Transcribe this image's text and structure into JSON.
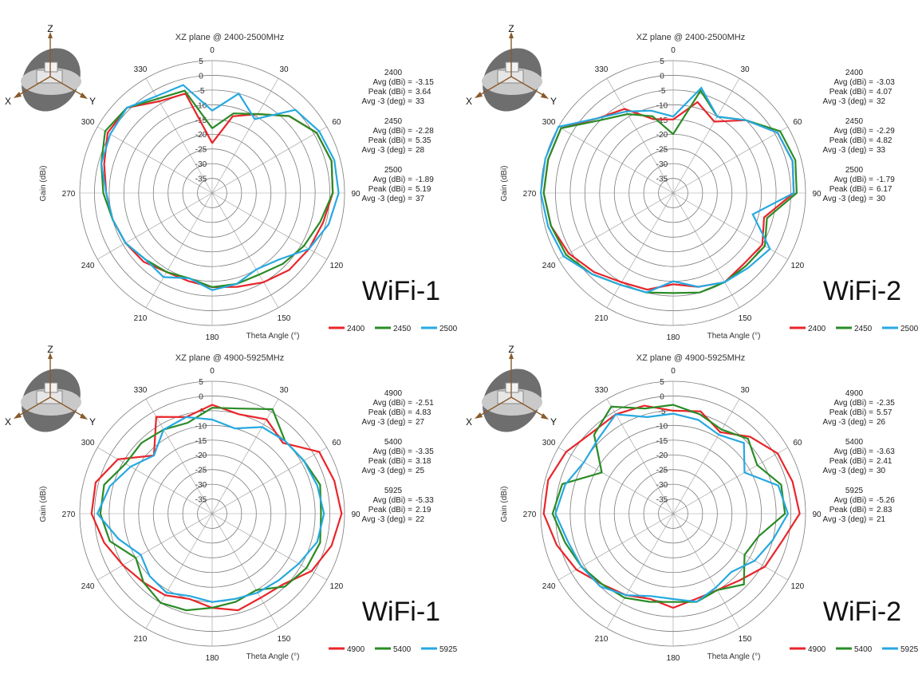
{
  "chart_data": [
    {
      "type": "polar-line",
      "title": "XZ plane @ 2400-2500MHz",
      "xlabel": "Theta Angle (°)",
      "ylabel": "Gain (dBi)",
      "rlim": [
        -40,
        5
      ],
      "r_ticks": [
        5,
        0,
        -5,
        -10,
        -15,
        -20,
        -25,
        -30,
        -35
      ],
      "angle_ticks": [
        0,
        30,
        60,
        90,
        120,
        150,
        180,
        210,
        240,
        270,
        300,
        330
      ],
      "grid": true,
      "legend": "bottom-right",
      "annotation": "WiFi-1",
      "stats": [
        {
          "label": "2400",
          "avg": "-3.15",
          "peak": "3.64",
          "avg3": "33"
        },
        {
          "label": "2450",
          "avg": "-2.28",
          "peak": "5.35",
          "avg3": "28"
        },
        {
          "label": "2500",
          "avg": "-1.89",
          "peak": "5.19",
          "avg3": "37"
        }
      ],
      "theta": [
        0,
        15,
        30,
        45,
        60,
        75,
        90,
        105,
        120,
        135,
        150,
        165,
        180,
        195,
        210,
        225,
        240,
        255,
        270,
        285,
        300,
        315,
        330,
        345
      ],
      "series": [
        {
          "name": "2400",
          "color": "#e8262b",
          "values": [
            -23,
            -13,
            -9,
            -3,
            1,
            2,
            1,
            -1,
            -2,
            -3,
            -5,
            -7,
            -8,
            -9,
            -9,
            -7,
            -6,
            -5,
            -4,
            -2,
            1,
            1,
            -4,
            -5
          ]
        },
        {
          "name": "2450",
          "color": "#2a8c26",
          "values": [
            -18,
            -12,
            -9,
            -3,
            1,
            2,
            1,
            -2,
            -4,
            -6,
            -8,
            -8,
            -8,
            -10,
            -9,
            -8,
            -6,
            -5,
            -3,
            -1,
            2,
            1,
            -3,
            -4
          ]
        },
        {
          "name": "2500",
          "color": "#26a9e0",
          "values": [
            -12,
            -5,
            -11,
            0,
            2,
            3,
            3,
            1,
            -2,
            -8,
            -10,
            -8,
            -7,
            -10,
            -7,
            -8,
            -6,
            -5,
            -4,
            -1,
            0,
            1,
            -2,
            -2
          ]
        }
      ]
    },
    {
      "type": "polar-line",
      "title": "XZ plane @ 2400-2500MHz",
      "xlabel": "Theta Angle (°)",
      "ylabel": "Gain (dBi)",
      "rlim": [
        -40,
        5
      ],
      "r_ticks": [
        5,
        0,
        -5,
        -10,
        -15,
        -20,
        -25,
        -30,
        -35
      ],
      "angle_ticks": [
        0,
        30,
        60,
        90,
        120,
        150,
        180,
        210,
        240,
        270,
        300,
        330
      ],
      "grid": true,
      "legend": "bottom-right",
      "annotation": "WiFi-2",
      "stats": [
        {
          "label": "2400",
          "avg": "-3.03",
          "peak": "4.07",
          "avg3": "32"
        },
        {
          "label": "2450",
          "avg": "-2.29",
          "peak": "4.82",
          "avg3": "33"
        },
        {
          "label": "2500",
          "avg": "-1.79",
          "peak": "6.17",
          "avg3": "30"
        }
      ],
      "theta": [
        0,
        15,
        30,
        45,
        60,
        75,
        90,
        105,
        120,
        135,
        150,
        165,
        180,
        195,
        210,
        225,
        240,
        255,
        270,
        285,
        300,
        315,
        330,
        345
      ],
      "series": [
        {
          "name": "2400",
          "color": "#e8262b",
          "values": [
            -15,
            -8,
            -12,
            -5,
            1,
            2,
            1,
            -8,
            -5,
            -6,
            -5,
            -7,
            -9,
            -6,
            -5,
            -2,
            1,
            3,
            4,
            4,
            4,
            -4,
            -7,
            -14
          ]
        },
        {
          "name": "2450",
          "color": "#2a8c26",
          "values": [
            -20,
            -4,
            -10,
            -5,
            2,
            3,
            2,
            -7,
            -4,
            -5,
            -5,
            -5,
            -6,
            -5,
            -4,
            -1,
            2,
            3,
            4,
            4,
            4,
            -5,
            -9,
            -13
          ]
        },
        {
          "name": "2500",
          "color": "#26a9e0",
          "values": [
            -14,
            -3,
            -10,
            -5,
            1,
            2,
            1,
            -12,
            -2,
            -4,
            -5,
            -7,
            -10,
            -5,
            -4,
            -1,
            3,
            4,
            5,
            5,
            5,
            -4,
            -8,
            -11
          ]
        }
      ]
    },
    {
      "type": "polar-line",
      "title": "XZ plane @ 4900-5925MHz",
      "xlabel": "Theta Angle (°)",
      "ylabel": "Gain (dBi)",
      "rlim": [
        -40,
        5
      ],
      "r_ticks": [
        5,
        0,
        -5,
        -10,
        -15,
        -20,
        -25,
        -30,
        -35
      ],
      "angle_ticks": [
        0,
        30,
        60,
        90,
        120,
        150,
        180,
        210,
        240,
        270,
        300,
        330
      ],
      "grid": true,
      "legend": "bottom-right",
      "annotation": "WiFi-1",
      "stats": [
        {
          "label": "4900",
          "avg": "-2.51",
          "peak": "4.83",
          "avg3": "27"
        },
        {
          "label": "5400",
          "avg": "-3.35",
          "peak": "3.18",
          "avg3": "25"
        },
        {
          "label": "5925",
          "avg": "-5.33",
          "peak": "2.19",
          "avg3": "22"
        }
      ],
      "theta": [
        0,
        15,
        30,
        45,
        60,
        75,
        90,
        105,
        120,
        135,
        150,
        165,
        180,
        195,
        210,
        225,
        240,
        255,
        270,
        285,
        300,
        315,
        330,
        345
      ],
      "series": [
        {
          "name": "4900",
          "color": "#e8262b",
          "values": [
            -3,
            -5,
            -3,
            -6,
            2,
            3,
            4,
            2,
            -1,
            -6,
            -7,
            -6,
            -8,
            -10,
            -8,
            -7,
            -5,
            -2,
            1,
            1,
            -3,
            -12,
            -2,
            -6
          ]
        },
        {
          "name": "5400",
          "color": "#2a8c26",
          "values": [
            -4,
            -3,
            1,
            -5,
            -4,
            -2,
            -3,
            -2,
            -3,
            -5,
            -10,
            -9,
            -8,
            -6,
            -5,
            -7,
            -10,
            -4,
            -2,
            -2,
            -6,
            -6,
            -7,
            -8
          ]
        },
        {
          "name": "5925",
          "color": "#26a9e0",
          "values": [
            -8,
            -10,
            -6,
            -5,
            -4,
            -3,
            -2,
            -3,
            -6,
            -8,
            -9,
            -10,
            -10,
            -11,
            -9,
            -10,
            -12,
            -7,
            -1,
            -4,
            -8,
            -12,
            -7,
            -6
          ]
        }
      ]
    },
    {
      "type": "polar-line",
      "title": "XZ plane @ 4900-5925MHz",
      "xlabel": "Theta Angle (°)",
      "ylabel": "Gain (dBi)",
      "rlim": [
        -40,
        5
      ],
      "r_ticks": [
        5,
        0,
        -5,
        -10,
        -15,
        -20,
        -25,
        -30,
        -35
      ],
      "angle_ticks": [
        0,
        30,
        60,
        90,
        120,
        150,
        180,
        210,
        240,
        270,
        300,
        330
      ],
      "grid": true,
      "legend": "bottom-right",
      "annotation": "WiFi-2",
      "stats": [
        {
          "label": "4900",
          "avg": "-2.35",
          "peak": "5.57",
          "avg3": "26"
        },
        {
          "label": "5400",
          "avg": "-3.63",
          "peak": "2.41",
          "avg3": "30"
        },
        {
          "label": "5925",
          "avg": "-5.26",
          "peak": "2.83",
          "avg3": "21"
        }
      ],
      "theta": [
        0,
        15,
        30,
        45,
        60,
        75,
        90,
        105,
        120,
        135,
        150,
        165,
        180,
        195,
        210,
        225,
        240,
        255,
        270,
        285,
        300,
        315,
        330,
        345
      ],
      "series": [
        {
          "name": "4900",
          "color": "#e8262b",
          "values": [
            -5,
            -4,
            -8,
            -3,
            1,
            2,
            3,
            -2,
            -4,
            -8,
            -10,
            -10,
            -8,
            -10,
            -8,
            -6,
            -2,
            1,
            4,
            4,
            2,
            -1,
            -1,
            -2
          ]
        },
        {
          "name": "5400",
          "color": "#2a8c26",
          "values": [
            -3,
            -5,
            -7,
            -4,
            -7,
            -2,
            -2,
            -10,
            -12,
            -6,
            -10,
            -9,
            -10,
            -9,
            -7,
            -6,
            -4,
            -2,
            1,
            -1,
            -12,
            -2,
            2,
            -3
          ]
        },
        {
          "name": "5925",
          "color": "#26a9e0",
          "values": [
            -6,
            -7,
            -9,
            -6,
            -12,
            -3,
            -1,
            -5,
            -8,
            -12,
            -11,
            -9,
            -11,
            -11,
            -8,
            -5,
            -4,
            -3,
            0,
            -2,
            -5,
            -4,
            -1,
            -6
          ]
        }
      ]
    }
  ],
  "common": {
    "stat_avg_label": "Avg (dBi) =",
    "stat_peak_label": "Peak (dBi) =",
    "stat_avg3_label": "Avg -3 (deg) =",
    "coord_labels": {
      "z": "Z",
      "x": "X",
      "y": "Y"
    }
  }
}
